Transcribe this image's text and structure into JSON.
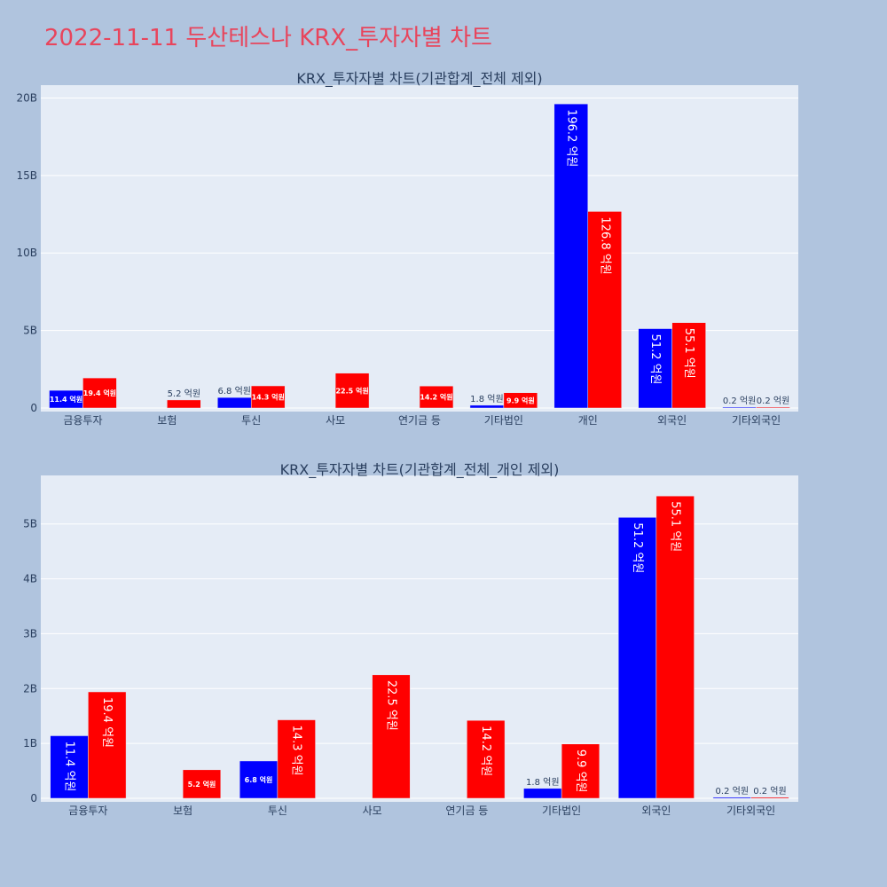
{
  "title": "2022-11-11 두산테스나 KRX_투자자별 차트",
  "chart_data": [
    {
      "type": "bar",
      "title": "KRX_투자자별 차트(기관합계_전체 제외)",
      "categories": [
        "금융투자",
        "보험",
        "투신",
        "사모",
        "연기금 등",
        "기타법인",
        "개인",
        "외국인",
        "기타외국인"
      ],
      "series": [
        {
          "color": "#0000ff",
          "values": [
            1.14,
            0,
            0.68,
            0,
            0,
            0.18,
            19.62,
            5.12,
            0.02
          ],
          "labels": [
            "11.4 억원",
            "",
            "6.8 억원",
            "",
            "",
            "1.8 억원",
            "196.2 억원",
            "51.2 억원",
            "0.2 억원"
          ]
        },
        {
          "color": "#ff0000",
          "values": [
            1.94,
            0.52,
            1.43,
            2.25,
            1.42,
            0.99,
            12.68,
            5.51,
            0.02
          ],
          "labels": [
            "19.4 억원",
            "5.2 억원",
            "14.3 억원",
            "22.5 억원",
            "14.2 억원",
            "9.9 억원",
            "126.8 억원",
            "55.1 억원",
            "0.2 억원"
          ]
        }
      ],
      "yticks": [
        "0",
        "5B",
        "10B",
        "15B",
        "20B"
      ],
      "ytick_values": [
        0,
        5,
        10,
        15,
        20
      ],
      "ylim": [
        0,
        20.6
      ]
    },
    {
      "type": "bar",
      "title": "KRX_투자자별 차트(기관합계_전체_개인 제외)",
      "categories": [
        "금융투자",
        "보험",
        "투신",
        "사모",
        "연기금 등",
        "기타법인",
        "외국인",
        "기타외국인"
      ],
      "series": [
        {
          "color": "#0000ff",
          "values": [
            1.14,
            0,
            0.68,
            0,
            0,
            0.18,
            5.12,
            0.02
          ],
          "labels": [
            "11.4 억원",
            "",
            "6.8 억원",
            "",
            "",
            "1.8 억원",
            "51.2 억원",
            "0.2 억원"
          ]
        },
        {
          "color": "#ff0000",
          "values": [
            1.94,
            0.52,
            1.43,
            2.25,
            1.42,
            0.99,
            5.51,
            0.02
          ],
          "labels": [
            "19.4 억원",
            "5.2 억원",
            "14.3 억원",
            "22.5 억원",
            "14.2 억원",
            "9.9 억원",
            "55.1 억원",
            "0.2 억원"
          ]
        }
      ],
      "yticks": [
        "0",
        "1B",
        "2B",
        "3B",
        "4B",
        "5B"
      ],
      "ytick_values": [
        0,
        1,
        2,
        3,
        4,
        5
      ],
      "ylim": [
        0,
        5.82
      ]
    }
  ]
}
